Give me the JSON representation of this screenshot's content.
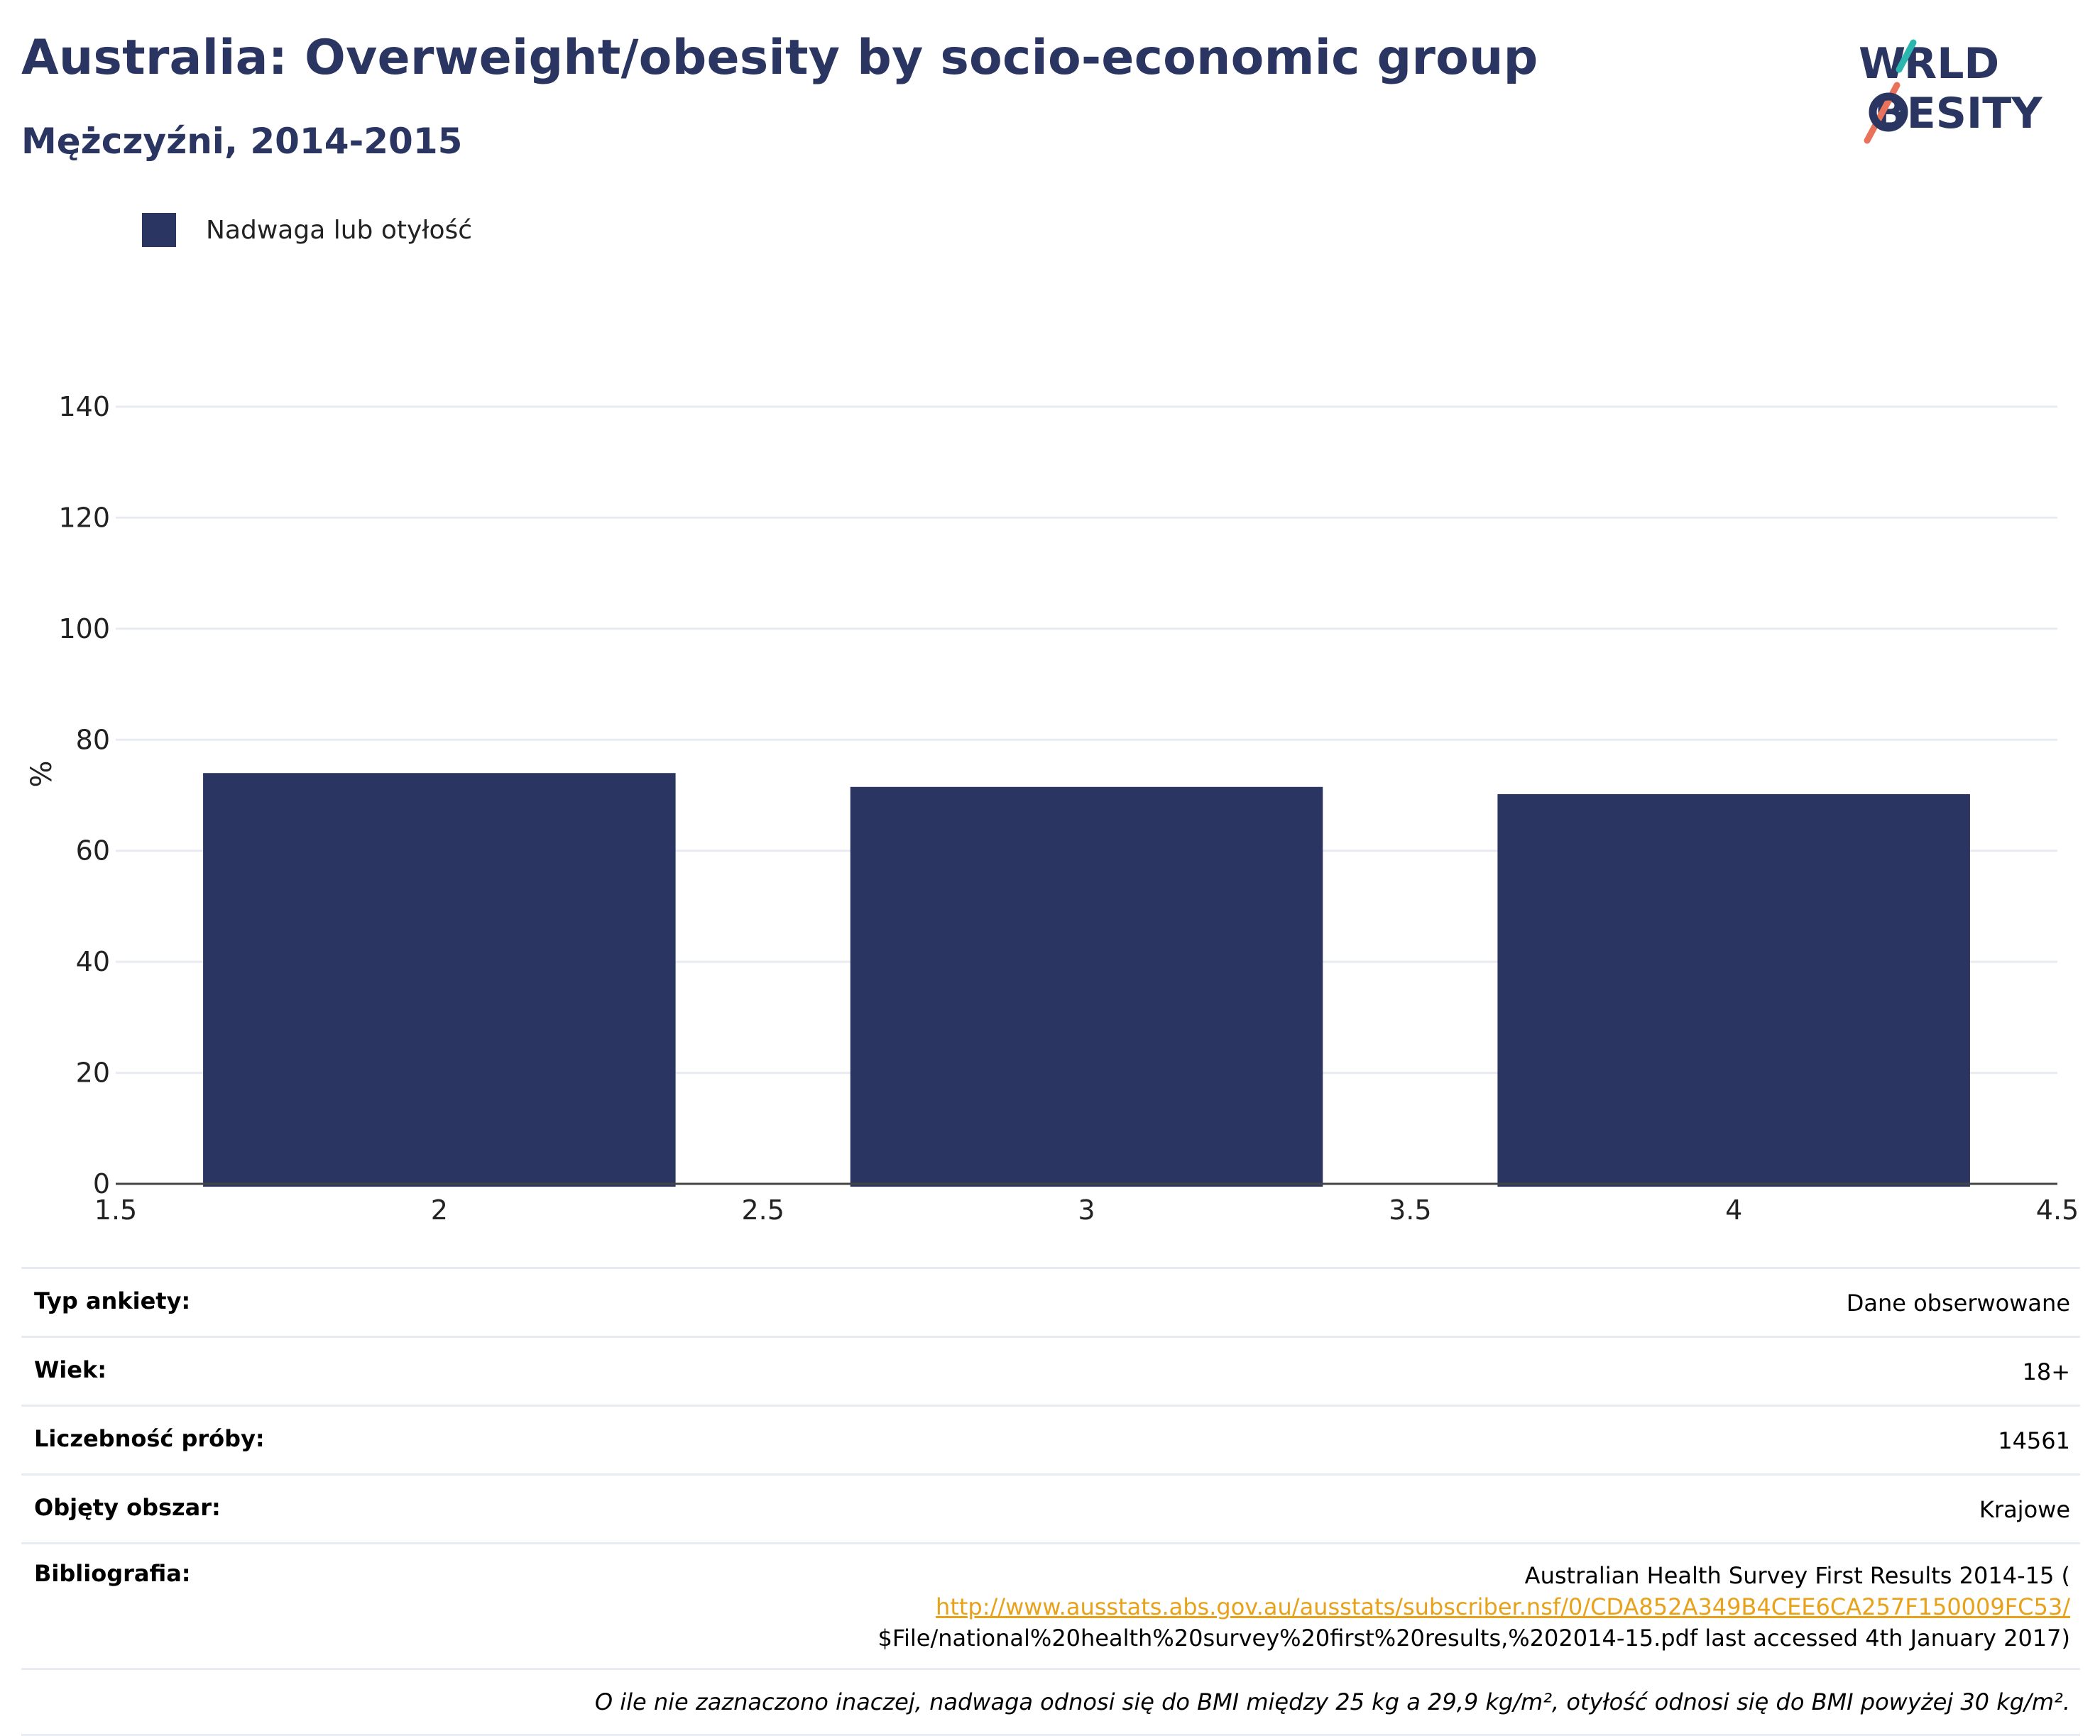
{
  "header": {
    "title": "Australia: Overweight/obesity by socio-economic group",
    "subtitle": "Mężczyźni, 2014-2015"
  },
  "logo": {
    "line1": "WORLD",
    "line2": "OBESITY",
    "accent_teal": "#2bb6b0",
    "accent_coral": "#e8735a",
    "color": "#2a3661"
  },
  "colors": {
    "bar": "#2a3661",
    "grid": "#e8ebf1",
    "axis": "#444444"
  },
  "chart_data": {
    "type": "bar",
    "x": [
      2,
      3,
      4
    ],
    "series": [
      {
        "name": "Nadwaga lub otyłość",
        "values": [
          74,
          71.5,
          70.2
        ]
      }
    ],
    "xlim": [
      1.5,
      4.5
    ],
    "ylim": [
      0,
      140
    ],
    "xticks": [
      "1.5",
      "2",
      "2.5",
      "3",
      "3.5",
      "4",
      "4.5"
    ],
    "yticks": [
      "0",
      "20",
      "40",
      "60",
      "80",
      "100",
      "120",
      "140"
    ],
    "ylabel": "%",
    "xlabel": "",
    "legend": "top-left",
    "grid": true
  },
  "info": {
    "rows": [
      {
        "key": "Typ ankiety:",
        "value": "Dane obserwowane"
      },
      {
        "key": "Wiek:",
        "value": "18+"
      },
      {
        "key": "Liczebność próby:",
        "value": "14561"
      },
      {
        "key": "Objęty obszar:",
        "value": "Krajowe"
      }
    ],
    "bibliography": {
      "key": "Bibliografia:",
      "line1": "Australian Health Survey First Results 2014-15 (",
      "link": "http://www.ausstats.abs.gov.au/ausstats/subscriber.nsf/0/CDA852A349B4CEE6CA257F150009FC53/",
      "line3": "$File/national%20health%20survey%20first%20results,%202014-15.pdf last accessed 4th January 2017)"
    },
    "footnote": "O ile nie zaznaczono inaczej, nadwaga odnosi się do BMI między 25 kg a 29,9 kg/m², otyłość odnosi się do BMI powyżej 30 kg/m²."
  }
}
